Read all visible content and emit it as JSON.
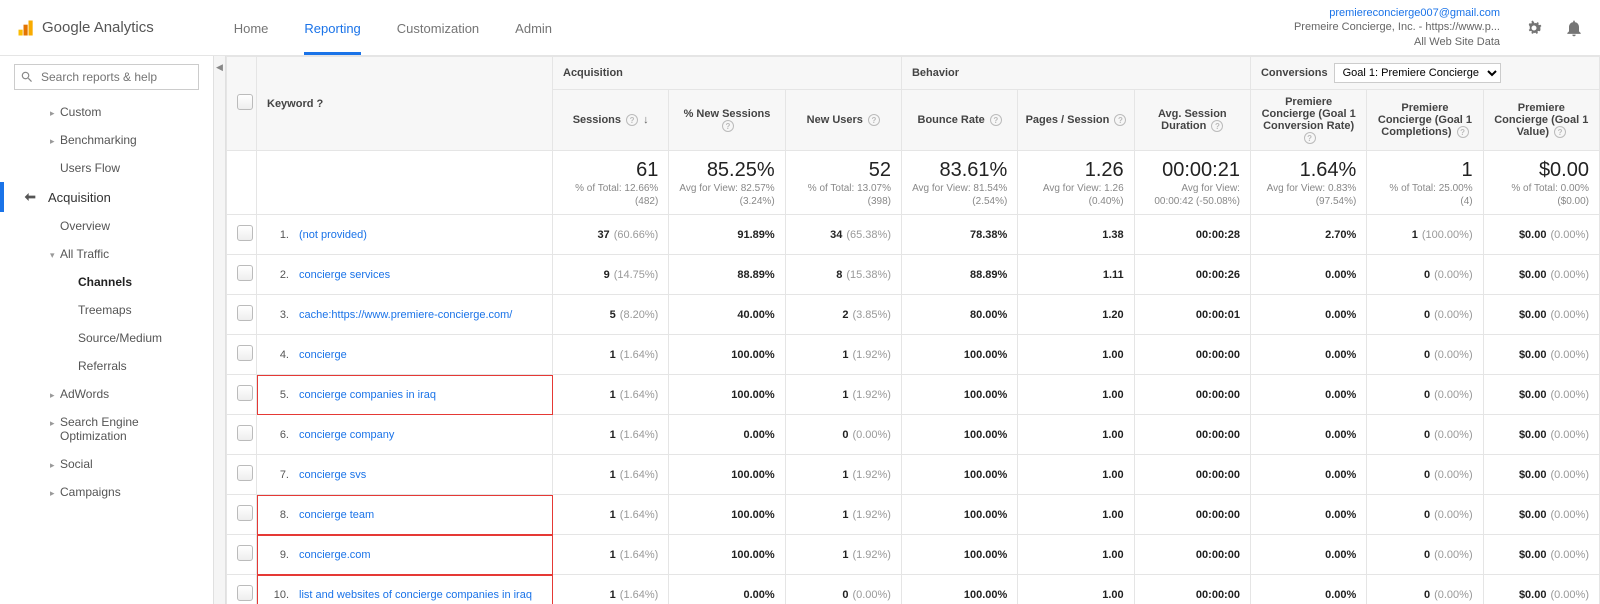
{
  "brand": "Google Analytics",
  "tabs": [
    "Home",
    "Reporting",
    "Customization",
    "Admin"
  ],
  "active_tab": 1,
  "account": {
    "email": "premiereconcierge007@gmail.com",
    "org": "Premeire Concierge, Inc. - https://www.p...",
    "view": "All Web Site Data"
  },
  "search_placeholder": "Search reports & help",
  "sidebar": [
    {
      "t": "lvl1",
      "label": "Custom",
      "arr": "▸"
    },
    {
      "t": "lvl1",
      "label": "Benchmarking",
      "arr": "▸"
    },
    {
      "t": "lvl1",
      "label": "Users Flow"
    },
    {
      "t": "hdr",
      "label": "Acquisition",
      "active": true
    },
    {
      "t": "lvl1",
      "label": "Overview"
    },
    {
      "t": "lvl1",
      "label": "All Traffic",
      "arr": "▾"
    },
    {
      "t": "lvl2",
      "label": "Channels",
      "bold": true
    },
    {
      "t": "lvl2",
      "label": "Treemaps"
    },
    {
      "t": "lvl2",
      "label": "Source/Medium"
    },
    {
      "t": "lvl2",
      "label": "Referrals"
    },
    {
      "t": "lvl1",
      "label": "AdWords",
      "arr": "▸"
    },
    {
      "t": "lvl1",
      "label": "Search Engine Optimization",
      "arr": "▸"
    },
    {
      "t": "lvl1",
      "label": "Social",
      "arr": "▸"
    },
    {
      "t": "lvl1",
      "label": "Campaigns",
      "arr": "▸"
    }
  ],
  "groups": {
    "keyword": "Keyword",
    "acq": "Acquisition",
    "beh": "Behavior",
    "conv": "Conversions",
    "conv_select": "Goal 1: Premiere Concierge"
  },
  "cols": [
    "Sessions",
    "% New Sessions",
    "New Users",
    "Bounce Rate",
    "Pages / Session",
    "Avg. Session Duration",
    "Premiere Concierge (Goal 1 Conversion Rate)",
    "Premiere Concierge (Goal 1 Completions)",
    "Premiere Concierge (Goal 1 Value)"
  ],
  "totals": [
    {
      "big": "61",
      "sm": "% of Total: 12.66% (482)"
    },
    {
      "big": "85.25%",
      "sm": "Avg for View: 82.57% (3.24%)"
    },
    {
      "big": "52",
      "sm": "% of Total: 13.07% (398)"
    },
    {
      "big": "83.61%",
      "sm": "Avg for View: 81.54% (2.54%)"
    },
    {
      "big": "1.26",
      "sm": "Avg for View: 1.26 (0.40%)"
    },
    {
      "big": "00:00:21",
      "sm": "Avg for View: 00:00:42 (-50.08%)"
    },
    {
      "big": "1.64%",
      "sm": "Avg for View: 0.83% (97.54%)"
    },
    {
      "big": "1",
      "sm": "% of Total: 25.00% (4)"
    },
    {
      "big": "$0.00",
      "sm": "% of Total: 0.00% ($0.00)"
    }
  ],
  "rows": [
    {
      "k": "(not provided)",
      "c": [
        [
          "37",
          "(60.66%)"
        ],
        [
          "91.89%",
          ""
        ],
        [
          "34",
          "(65.38%)"
        ],
        [
          "78.38%",
          ""
        ],
        [
          "1.38",
          ""
        ],
        [
          "00:00:28",
          ""
        ],
        [
          "2.70%",
          ""
        ],
        [
          "1",
          "(100.00%)"
        ],
        [
          "$0.00",
          "(0.00%)"
        ]
      ]
    },
    {
      "k": "concierge services",
      "c": [
        [
          "9",
          "(14.75%)"
        ],
        [
          "88.89%",
          ""
        ],
        [
          "8",
          "(15.38%)"
        ],
        [
          "88.89%",
          ""
        ],
        [
          "1.11",
          ""
        ],
        [
          "00:00:26",
          ""
        ],
        [
          "0.00%",
          ""
        ],
        [
          "0",
          "(0.00%)"
        ],
        [
          "$0.00",
          "(0.00%)"
        ]
      ]
    },
    {
      "k": "cache:https://www.premiere-concierge.com/",
      "c": [
        [
          "5",
          "(8.20%)"
        ],
        [
          "40.00%",
          ""
        ],
        [
          "2",
          "(3.85%)"
        ],
        [
          "80.00%",
          ""
        ],
        [
          "1.20",
          ""
        ],
        [
          "00:00:01",
          ""
        ],
        [
          "0.00%",
          ""
        ],
        [
          "0",
          "(0.00%)"
        ],
        [
          "$0.00",
          "(0.00%)"
        ]
      ]
    },
    {
      "k": "concierge",
      "c": [
        [
          "1",
          "(1.64%)"
        ],
        [
          "100.00%",
          ""
        ],
        [
          "1",
          "(1.92%)"
        ],
        [
          "100.00%",
          ""
        ],
        [
          "1.00",
          ""
        ],
        [
          "00:00:00",
          ""
        ],
        [
          "0.00%",
          ""
        ],
        [
          "0",
          "(0.00%)"
        ],
        [
          "$0.00",
          "(0.00%)"
        ]
      ]
    },
    {
      "k": "concierge companies in iraq",
      "hl": true,
      "c": [
        [
          "1",
          "(1.64%)"
        ],
        [
          "100.00%",
          ""
        ],
        [
          "1",
          "(1.92%)"
        ],
        [
          "100.00%",
          ""
        ],
        [
          "1.00",
          ""
        ],
        [
          "00:00:00",
          ""
        ],
        [
          "0.00%",
          ""
        ],
        [
          "0",
          "(0.00%)"
        ],
        [
          "$0.00",
          "(0.00%)"
        ]
      ]
    },
    {
      "k": "concierge company",
      "c": [
        [
          "1",
          "(1.64%)"
        ],
        [
          "0.00%",
          ""
        ],
        [
          "0",
          "(0.00%)"
        ],
        [
          "100.00%",
          ""
        ],
        [
          "1.00",
          ""
        ],
        [
          "00:00:00",
          ""
        ],
        [
          "0.00%",
          ""
        ],
        [
          "0",
          "(0.00%)"
        ],
        [
          "$0.00",
          "(0.00%)"
        ]
      ]
    },
    {
      "k": "concierge svs",
      "c": [
        [
          "1",
          "(1.64%)"
        ],
        [
          "100.00%",
          ""
        ],
        [
          "1",
          "(1.92%)"
        ],
        [
          "100.00%",
          ""
        ],
        [
          "1.00",
          ""
        ],
        [
          "00:00:00",
          ""
        ],
        [
          "0.00%",
          ""
        ],
        [
          "0",
          "(0.00%)"
        ],
        [
          "$0.00",
          "(0.00%)"
        ]
      ]
    },
    {
      "k": "concierge team",
      "hl": true,
      "c": [
        [
          "1",
          "(1.64%)"
        ],
        [
          "100.00%",
          ""
        ],
        [
          "1",
          "(1.92%)"
        ],
        [
          "100.00%",
          ""
        ],
        [
          "1.00",
          ""
        ],
        [
          "00:00:00",
          ""
        ],
        [
          "0.00%",
          ""
        ],
        [
          "0",
          "(0.00%)"
        ],
        [
          "$0.00",
          "(0.00%)"
        ]
      ]
    },
    {
      "k": "concierge.com",
      "hl": true,
      "c": [
        [
          "1",
          "(1.64%)"
        ],
        [
          "100.00%",
          ""
        ],
        [
          "1",
          "(1.92%)"
        ],
        [
          "100.00%",
          ""
        ],
        [
          "1.00",
          ""
        ],
        [
          "00:00:00",
          ""
        ],
        [
          "0.00%",
          ""
        ],
        [
          "0",
          "(0.00%)"
        ],
        [
          "$0.00",
          "(0.00%)"
        ]
      ]
    },
    {
      "k": "list and websites of concierge companies in iraq",
      "hl": true,
      "c": [
        [
          "1",
          "(1.64%)"
        ],
        [
          "0.00%",
          ""
        ],
        [
          "0",
          "(0.00%)"
        ],
        [
          "100.00%",
          ""
        ],
        [
          "1.00",
          ""
        ],
        [
          "00:00:00",
          ""
        ],
        [
          "0.00%",
          ""
        ],
        [
          "0",
          "(0.00%)"
        ],
        [
          "$0.00",
          "(0.00%)"
        ]
      ]
    }
  ]
}
